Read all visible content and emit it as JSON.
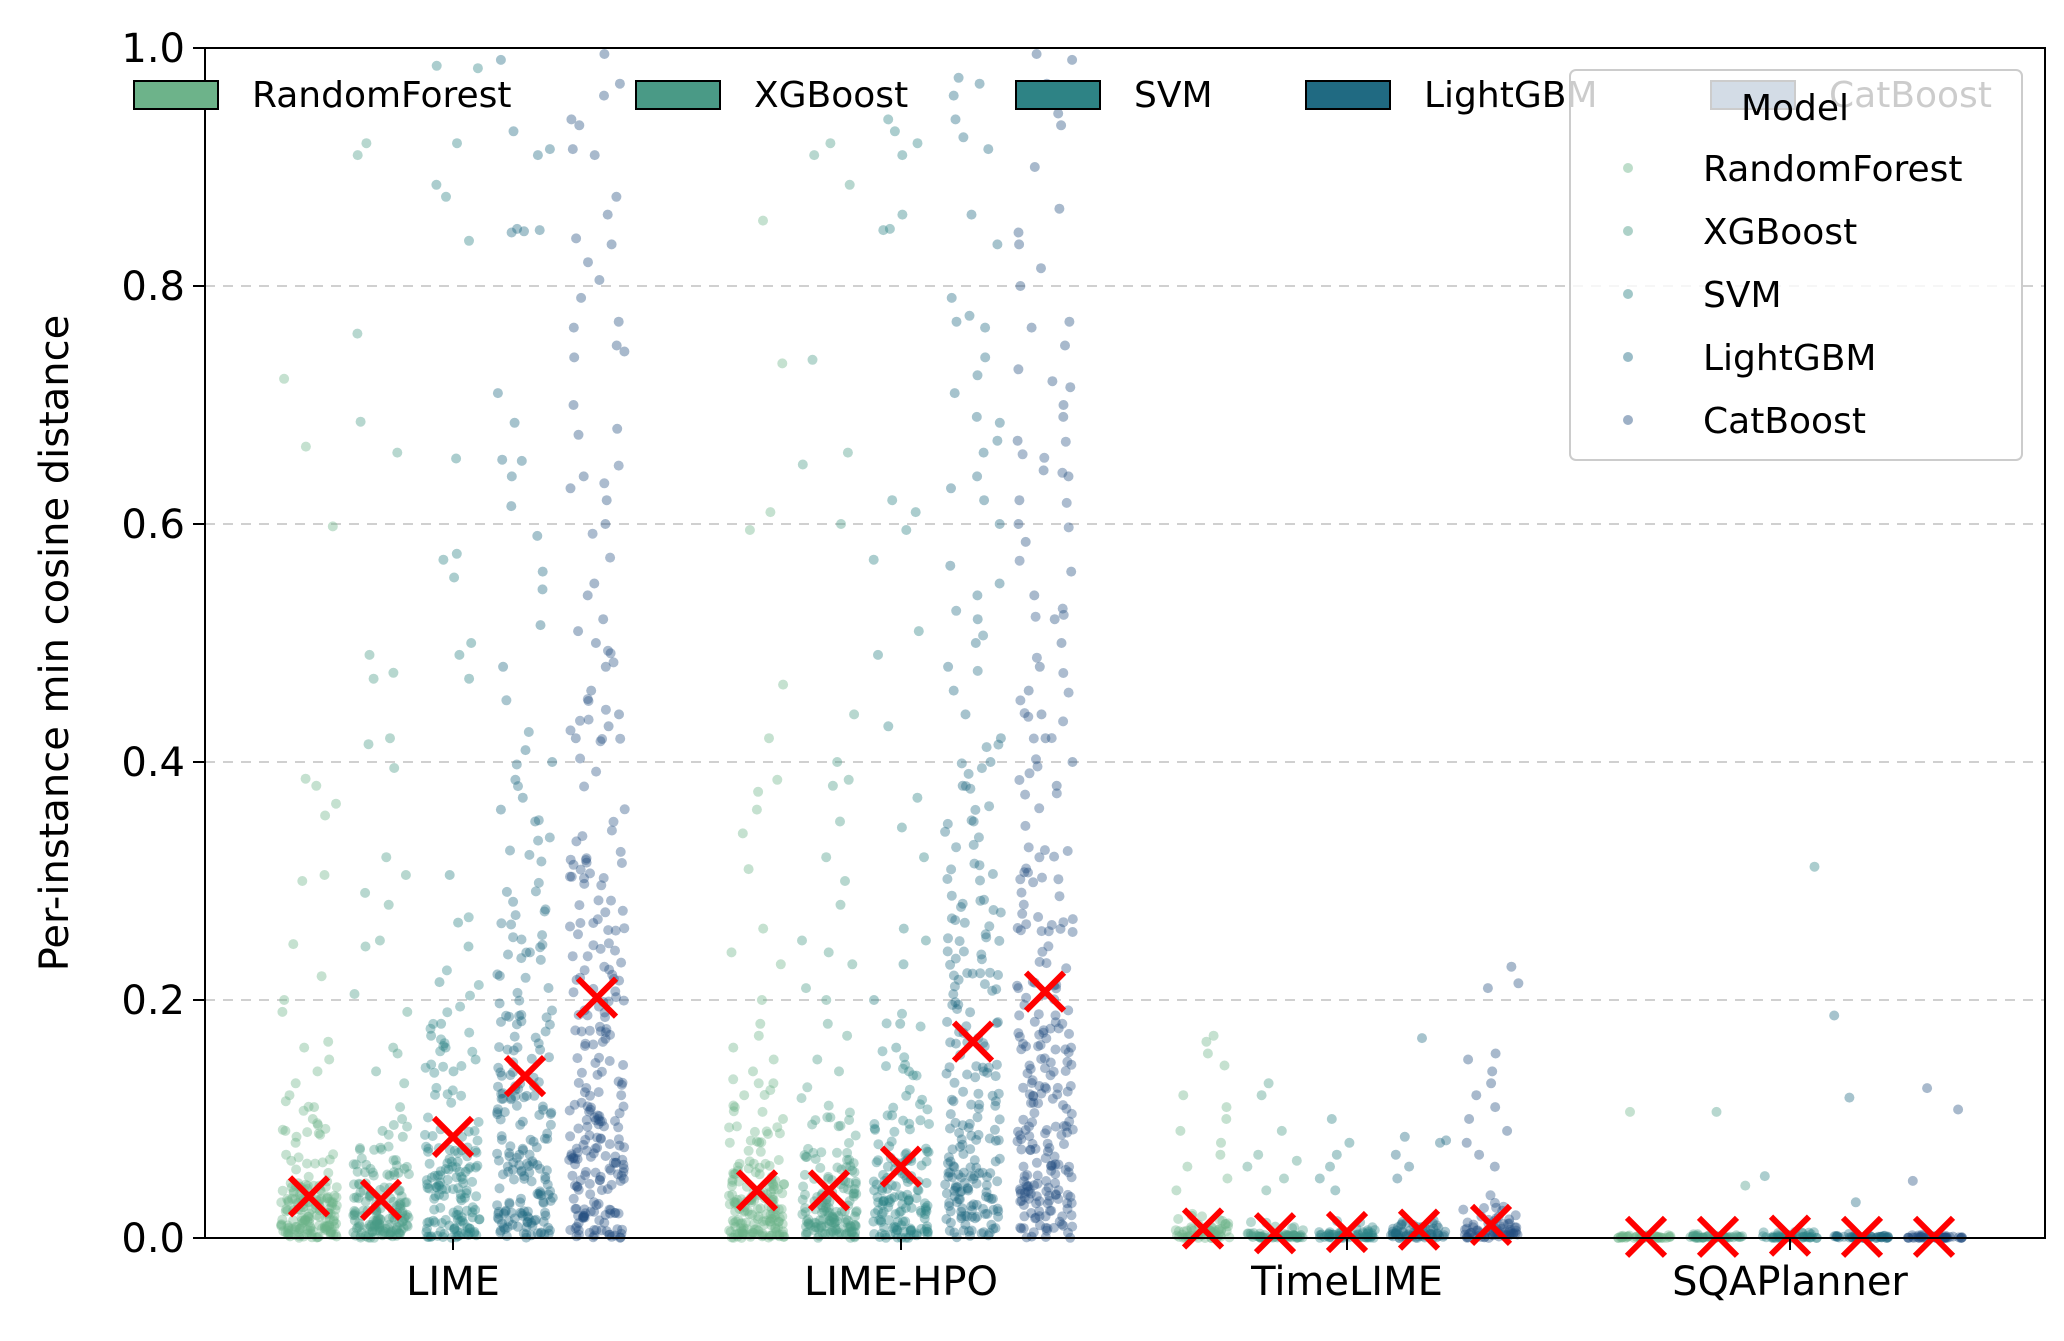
{
  "chart_data": {
    "type": "scatter",
    "ylabel": "Per-instance min cosine distance",
    "xlabel": "",
    "ylim": [
      0,
      1
    ],
    "y_ticks": [
      "0.0",
      "0.2",
      "0.4",
      "0.6",
      "0.8",
      "1.0"
    ],
    "grid": "horizontal dashed",
    "categories": [
      "LIME",
      "LIME-HPO",
      "TimeLIME",
      "SQAPlanner"
    ],
    "models": [
      "RandomForest",
      "XGBoost",
      "SVM",
      "LightGBM",
      "CatBoost"
    ],
    "colors": {
      "RandomForest": "#6db38a",
      "XGBoost": "#4a9a86",
      "SVM": "#2e8385",
      "LightGBM": "#206a82",
      "CatBoost": "#254f80"
    },
    "series": [
      {
        "name": "RandomForest",
        "mean": [
          0.035,
          0.04,
          0.008,
          0.001
        ]
      },
      {
        "name": "XGBoost",
        "mean": [
          0.032,
          0.04,
          0.004,
          0.001
        ]
      },
      {
        "name": "SVM",
        "mean": [
          0.085,
          0.06,
          0.005,
          0.002
        ]
      },
      {
        "name": "LightGBM",
        "mean": [
          0.136,
          0.165,
          0.007,
          0.001
        ]
      },
      {
        "name": "CatBoost",
        "mean": [
          0.202,
          0.207,
          0.011,
          0.001
        ]
      }
    ],
    "outliers": [
      {
        "method": "LIME",
        "model": "RandomForest",
        "values": [
          0.665,
          0.722,
          0.598,
          0.386,
          0.38,
          0.365,
          0.355,
          0.305,
          0.3,
          0.247,
          0.22,
          0.2,
          0.19,
          0.165,
          0.16,
          0.15,
          0.14,
          0.13,
          0.12,
          0.115,
          0.11,
          0.1,
          0.095,
          0.09,
          0.085,
          0.08,
          0.07,
          0.065
        ]
      },
      {
        "method": "LIME",
        "model": "XGBoost",
        "values": [
          0.92,
          0.91,
          0.76,
          0.686,
          0.66,
          0.49,
          0.475,
          0.47,
          0.42,
          0.415,
          0.395,
          0.32,
          0.305,
          0.29,
          0.28,
          0.25,
          0.245,
          0.205,
          0.19,
          0.16,
          0.155,
          0.14,
          0.13,
          0.11,
          0.1,
          0.095,
          0.09,
          0.085
        ]
      },
      {
        "method": "LIME",
        "model": "SVM",
        "values": [
          0.985,
          0.983,
          0.92,
          0.885,
          0.875,
          0.838,
          0.655,
          0.575,
          0.57,
          0.555,
          0.5,
          0.49,
          0.47,
          0.305,
          0.265,
          0.245,
          0.215,
          0.18,
          0.17,
          0.16,
          0.15,
          0.14
        ]
      },
      {
        "method": "LIME",
        "model": "LightGBM",
        "values": [
          0.99,
          0.93,
          0.915,
          0.91,
          0.848,
          0.847,
          0.846,
          0.845,
          0.71,
          0.685,
          0.654,
          0.653,
          0.64,
          0.615,
          0.59,
          0.56,
          0.545,
          0.515,
          0.48,
          0.41,
          0.4,
          0.385,
          0.37,
          0.36,
          0.35
        ]
      },
      {
        "method": "LIME",
        "model": "CatBoost",
        "values": [
          0.995,
          0.97,
          0.96,
          0.94,
          0.935,
          0.915,
          0.91,
          0.875,
          0.86,
          0.84,
          0.835,
          0.82,
          0.805,
          0.79,
          0.77,
          0.765,
          0.75,
          0.745,
          0.74,
          0.7,
          0.68,
          0.675,
          0.64,
          0.63,
          0.62,
          0.6,
          0.55,
          0.54,
          0.52,
          0.51,
          0.5,
          0.48,
          0.46,
          0.44,
          0.43,
          0.42
        ]
      },
      {
        "method": "LIME-HPO",
        "model": "RandomForest",
        "values": [
          0.855,
          0.735,
          0.61,
          0.595,
          0.465,
          0.42,
          0.385,
          0.375,
          0.36,
          0.34,
          0.31,
          0.26,
          0.24,
          0.23,
          0.2,
          0.18,
          0.17,
          0.16,
          0.15,
          0.14,
          0.13,
          0.12,
          0.11,
          0.1
        ]
      },
      {
        "method": "LIME-HPO",
        "model": "XGBoost",
        "values": [
          0.92,
          0.91,
          0.885,
          0.738,
          0.66,
          0.65,
          0.6,
          0.44,
          0.4,
          0.385,
          0.38,
          0.35,
          0.32,
          0.3,
          0.28,
          0.25,
          0.24,
          0.23,
          0.21,
          0.2,
          0.18,
          0.17,
          0.15,
          0.14
        ]
      },
      {
        "method": "LIME-HPO",
        "model": "SVM",
        "values": [
          0.94,
          0.93,
          0.92,
          0.91,
          0.86,
          0.848,
          0.847,
          0.62,
          0.61,
          0.595,
          0.57,
          0.51,
          0.49,
          0.43,
          0.37,
          0.345,
          0.32,
          0.26,
          0.25,
          0.23,
          0.2,
          0.18,
          0.16,
          0.14
        ]
      },
      {
        "method": "LIME-HPO",
        "model": "LightGBM",
        "values": [
          0.975,
          0.97,
          0.96,
          0.94,
          0.925,
          0.915,
          0.86,
          0.835,
          0.79,
          0.775,
          0.77,
          0.765,
          0.74,
          0.725,
          0.71,
          0.69,
          0.685,
          0.67,
          0.66,
          0.64,
          0.63,
          0.62,
          0.6,
          0.565,
          0.55,
          0.54,
          0.52,
          0.5,
          0.48,
          0.46,
          0.44,
          0.42,
          0.4,
          0.38
        ]
      },
      {
        "method": "LIME-HPO",
        "model": "CatBoost",
        "values": [
          0.995,
          0.99,
          0.97,
          0.945,
          0.935,
          0.9,
          0.865,
          0.845,
          0.835,
          0.815,
          0.8,
          0.77,
          0.765,
          0.75,
          0.73,
          0.72,
          0.715,
          0.7,
          0.69,
          0.67,
          0.645,
          0.64,
          0.62,
          0.6,
          0.585,
          0.56,
          0.54,
          0.52,
          0.5,
          0.48,
          0.46,
          0.44,
          0.42,
          0.4,
          0.38
        ]
      },
      {
        "method": "TimeLIME",
        "model": "RandomForest",
        "values": [
          0.17,
          0.165,
          0.155,
          0.145,
          0.12,
          0.11,
          0.1,
          0.09,
          0.08,
          0.07,
          0.06,
          0.05,
          0.04
        ]
      },
      {
        "method": "TimeLIME",
        "model": "XGBoost",
        "values": [
          0.13,
          0.12,
          0.09,
          0.07,
          0.065,
          0.06,
          0.05,
          0.04
        ]
      },
      {
        "method": "TimeLIME",
        "model": "SVM",
        "values": [
          0.1,
          0.08,
          0.07,
          0.06,
          0.05,
          0.04
        ]
      },
      {
        "method": "TimeLIME",
        "model": "LightGBM",
        "values": [
          0.168,
          0.085,
          0.082,
          0.08,
          0.07,
          0.06,
          0.05
        ]
      },
      {
        "method": "TimeLIME",
        "model": "CatBoost",
        "values": [
          0.228,
          0.214,
          0.21,
          0.155,
          0.15,
          0.14,
          0.13,
          0.12,
          0.11,
          0.1,
          0.09,
          0.08,
          0.07,
          0.06
        ]
      },
      {
        "method": "SQAPlanner",
        "model": "RandomForest",
        "values": [
          0.106
        ]
      },
      {
        "method": "SQAPlanner",
        "model": "XGBoost",
        "values": [
          0.106,
          0.044
        ]
      },
      {
        "method": "SQAPlanner",
        "model": "SVM",
        "values": [
          0.312,
          0.052
        ]
      },
      {
        "method": "SQAPlanner",
        "model": "LightGBM",
        "values": [
          0.187,
          0.118,
          0.03
        ]
      },
      {
        "method": "SQAPlanner",
        "model": "CatBoost",
        "values": [
          0.126,
          0.108,
          0.048
        ]
      }
    ],
    "mean_marker": "red x",
    "legend_top": [
      "RandomForest",
      "XGBoost",
      "SVM",
      "LightGBM",
      "CatBoost"
    ],
    "legend_right": {
      "title": "Model",
      "entries": [
        "RandomForest",
        "XGBoost",
        "SVM",
        "LightGBM",
        "CatBoost"
      ],
      "placement": "top-right"
    }
  }
}
